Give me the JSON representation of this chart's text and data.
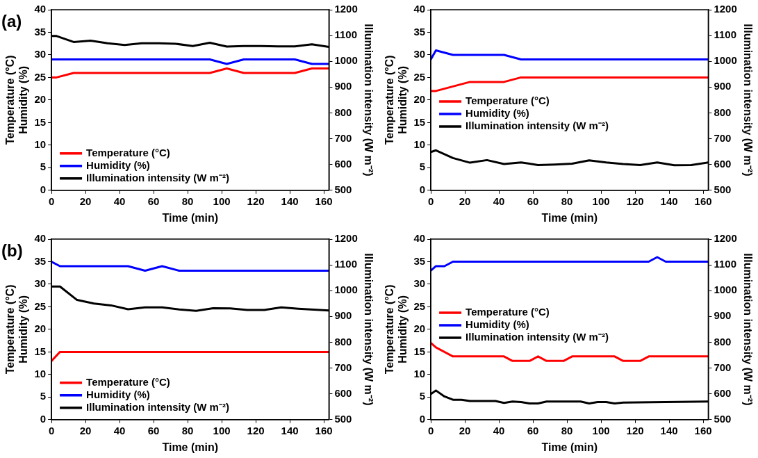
{
  "chart_data": [
    {
      "type": "line",
      "annotations": [
        "(a)"
      ],
      "xlabel": "Time (min)",
      "ylabel": "Temperature (°C)\nHumidity (%)",
      "y2label": "Illumination intensity (W m⁻²)",
      "xlim": [
        0,
        163
      ],
      "xticks": [
        0,
        20,
        40,
        60,
        80,
        100,
        120,
        140,
        160
      ],
      "ylim": [
        0,
        40
      ],
      "yticks": [
        0,
        5,
        10,
        15,
        20,
        25,
        30,
        35,
        40
      ],
      "y2lim": [
        500,
        1200
      ],
      "y2ticks": [
        500,
        600,
        700,
        800,
        900,
        1000,
        1100,
        1200
      ],
      "legend": "bottom left",
      "series": [
        {
          "name": "Temperature (°C)",
          "color": "#ff0000",
          "x": [
            0,
            3,
            13,
            93,
            103,
            113,
            143,
            153,
            163
          ],
          "values": [
            25,
            25,
            26,
            26,
            27,
            26,
            26,
            27,
            27
          ]
        },
        {
          "name": "Humidity (%)",
          "color": "#0000ff",
          "x": [
            0,
            93,
            103,
            113,
            143,
            153,
            163
          ],
          "values": [
            29,
            29,
            28,
            29,
            29,
            28,
            28
          ]
        },
        {
          "name": "Illumination intensity (W m⁻²)",
          "color": "#000000",
          "axis": "y2",
          "x": [
            0,
            3,
            13,
            23,
            33,
            43,
            53,
            63,
            73,
            83,
            93,
            103,
            113,
            123,
            133,
            143,
            153,
            163
          ],
          "values": [
            1098,
            1098,
            1075,
            1080,
            1070,
            1063,
            1070,
            1070,
            1068,
            1059,
            1072,
            1057,
            1059,
            1059,
            1058,
            1058,
            1066,
            1056
          ]
        }
      ]
    },
    {
      "type": "line",
      "xlabel": "Time (min)",
      "ylabel": "Temperature (°C)\nHumidity (%)",
      "y2label": "Illumination intensity (W m⁻²)",
      "xlim": [
        0,
        163
      ],
      "xticks": [
        0,
        20,
        40,
        60,
        80,
        100,
        120,
        140,
        160
      ],
      "ylim": [
        0,
        40
      ],
      "yticks": [
        0,
        5,
        10,
        15,
        20,
        25,
        30,
        35,
        40
      ],
      "y2lim": [
        500,
        1200
      ],
      "y2ticks": [
        500,
        600,
        700,
        800,
        900,
        1000,
        1100,
        1200
      ],
      "legend": "left",
      "series": [
        {
          "name": "Temperature (°C)",
          "color": "#ff0000",
          "x": [
            0,
            3,
            13,
            23,
            43,
            53,
            163
          ],
          "values": [
            22,
            22,
            23,
            24,
            24,
            25,
            25
          ]
        },
        {
          "name": "Humidity (%)",
          "color": "#0000ff",
          "x": [
            0,
            3,
            13,
            43,
            53,
            163
          ],
          "values": [
            29,
            31,
            30,
            30,
            29,
            29
          ]
        },
        {
          "name": "Illumination intensity (W m⁻²)",
          "color": "#000000",
          "axis": "y2",
          "x": [
            0,
            3,
            13,
            23,
            33,
            43,
            53,
            63,
            73,
            83,
            93,
            103,
            113,
            123,
            133,
            143,
            153,
            163
          ],
          "values": [
            648,
            655,
            625,
            607,
            617,
            602,
            608,
            598,
            600,
            603,
            616,
            608,
            602,
            598,
            608,
            597,
            598,
            608
          ]
        }
      ]
    },
    {
      "type": "line",
      "annotations": [
        "(b)"
      ],
      "xlabel": "Time (min)",
      "ylabel": "Temperature (°C)\nHumidity (%)",
      "y2label": "Illumination intensity (W m⁻²)",
      "xlim": [
        0,
        163
      ],
      "xticks": [
        0,
        20,
        40,
        60,
        80,
        100,
        120,
        140,
        160
      ],
      "ylim": [
        0,
        40
      ],
      "yticks": [
        0,
        5,
        10,
        15,
        20,
        25,
        30,
        35,
        40
      ],
      "y2lim": [
        500,
        1200
      ],
      "y2ticks": [
        500,
        600,
        700,
        800,
        900,
        1000,
        1100,
        1200
      ],
      "legend": "bottom left",
      "series": [
        {
          "name": "Temperature (°C)",
          "color": "#ff0000",
          "x": [
            0,
            5,
            163
          ],
          "values": [
            13,
            15,
            15
          ]
        },
        {
          "name": "Humidity (%)",
          "color": "#0000ff",
          "x": [
            0,
            5,
            45,
            55,
            65,
            75,
            163
          ],
          "values": [
            35,
            34,
            34,
            33,
            34,
            33,
            33
          ]
        },
        {
          "name": "Illumination intensity (W m⁻²)",
          "color": "#000000",
          "axis": "y2",
          "x": [
            0,
            5,
            15,
            25,
            35,
            45,
            55,
            65,
            75,
            85,
            95,
            105,
            115,
            125,
            135,
            145,
            163
          ],
          "values": [
            1016,
            1016,
            964,
            950,
            943,
            928,
            935,
            935,
            927,
            922,
            932,
            931,
            925,
            925,
            935,
            930,
            923
          ]
        }
      ]
    },
    {
      "type": "line",
      "xlabel": "Time (min)",
      "ylabel": "Temperature (°C)\nHumidity (%)",
      "y2label": "Illumination intensity (W m⁻²)",
      "xlim": [
        0,
        163
      ],
      "xticks": [
        0,
        20,
        40,
        60,
        80,
        100,
        120,
        140,
        160
      ],
      "ylim": [
        0,
        40
      ],
      "yticks": [
        0,
        5,
        10,
        15,
        20,
        25,
        30,
        35,
        40
      ],
      "y2lim": [
        500,
        1200
      ],
      "y2ticks": [
        500,
        600,
        700,
        800,
        900,
        1000,
        1100,
        1200
      ],
      "legend": "left",
      "series": [
        {
          "name": "Temperature (°C)",
          "color": "#ff0000",
          "x": [
            0,
            3,
            13,
            43,
            48,
            58,
            63,
            68,
            78,
            83,
            108,
            113,
            123,
            128,
            163
          ],
          "values": [
            17,
            16,
            14,
            14,
            13,
            13,
            14,
            13,
            13,
            14,
            14,
            13,
            13,
            14,
            14
          ]
        },
        {
          "name": "Humidity (%)",
          "color": "#0000ff",
          "x": [
            0,
            3,
            8,
            13,
            128,
            133,
            138,
            163
          ],
          "values": [
            33,
            34,
            34,
            35,
            35,
            36,
            35,
            35
          ]
        },
        {
          "name": "Illumination intensity (W m⁻²)",
          "color": "#000000",
          "axis": "y2",
          "x": [
            0,
            3,
            8,
            13,
            18,
            23,
            38,
            43,
            48,
            53,
            58,
            63,
            68,
            88,
            93,
            98,
            103,
            108,
            113,
            163
          ],
          "values": [
            599,
            613,
            590,
            577,
            577,
            572,
            572,
            565,
            570,
            568,
            563,
            563,
            570,
            570,
            563,
            568,
            568,
            563,
            566,
            570
          ]
        }
      ]
    }
  ]
}
